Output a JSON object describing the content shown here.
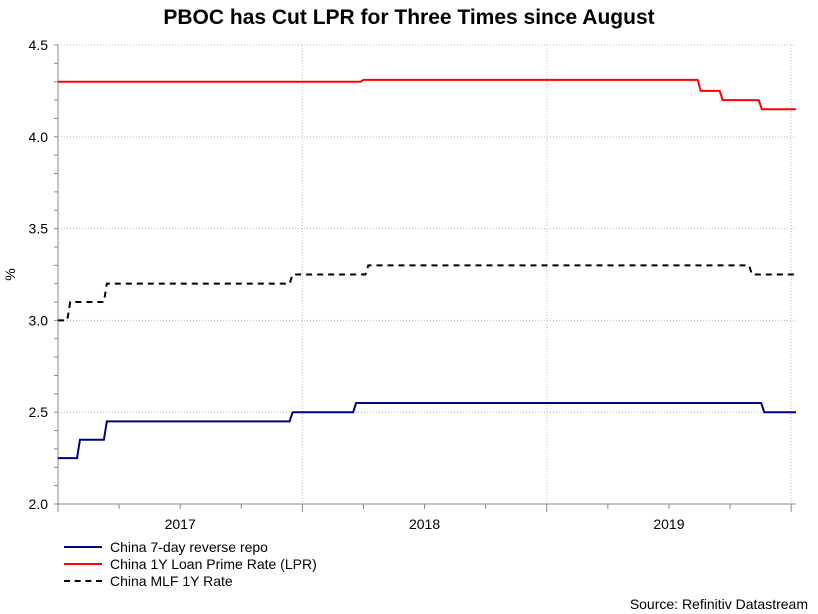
{
  "chart_data": {
    "type": "line",
    "title": "PBOC has Cut LPR for Three Times since August",
    "ylabel": "%",
    "xlabel": "",
    "ylim": [
      2.0,
      4.5
    ],
    "yticks": [
      "2.0",
      "2.5",
      "3.0",
      "3.5",
      "4.0",
      "4.5"
    ],
    "xlim": [
      2017.0,
      2020.02
    ],
    "xtick_labels": [
      {
        "label": "2017",
        "center": 2017.5
      },
      {
        "label": "2018",
        "center": 2018.5
      },
      {
        "label": "2019",
        "center": 2019.5
      }
    ],
    "grid": true,
    "legend_position": "bottom-left",
    "step": true,
    "series": [
      {
        "name": "China 7-day reverse repo",
        "color": "#000080",
        "dash": false,
        "points": [
          [
            2017.0,
            2.25
          ],
          [
            2017.09,
            2.35
          ],
          [
            2017.2,
            2.45
          ],
          [
            2017.96,
            2.5
          ],
          [
            2018.22,
            2.55
          ],
          [
            2019.89,
            2.5
          ],
          [
            2020.02,
            2.5
          ]
        ]
      },
      {
        "name": "China 1Y Loan Prime Rate (LPR)",
        "color": "#ff0000",
        "dash": false,
        "points": [
          [
            2017.0,
            4.3
          ],
          [
            2018.25,
            4.31
          ],
          [
            2019.63,
            4.25
          ],
          [
            2019.72,
            4.2
          ],
          [
            2019.88,
            4.15
          ],
          [
            2020.02,
            4.15
          ]
        ]
      },
      {
        "name": "China MLF 1Y Rate",
        "color": "#000000",
        "dash": true,
        "points": [
          [
            2017.0,
            3.0
          ],
          [
            2017.05,
            3.1
          ],
          [
            2017.2,
            3.2
          ],
          [
            2017.96,
            3.25
          ],
          [
            2018.27,
            3.3
          ],
          [
            2019.84,
            3.25
          ],
          [
            2020.02,
            3.25
          ]
        ]
      }
    ],
    "source": "Source: Refinitiv Datastream"
  }
}
